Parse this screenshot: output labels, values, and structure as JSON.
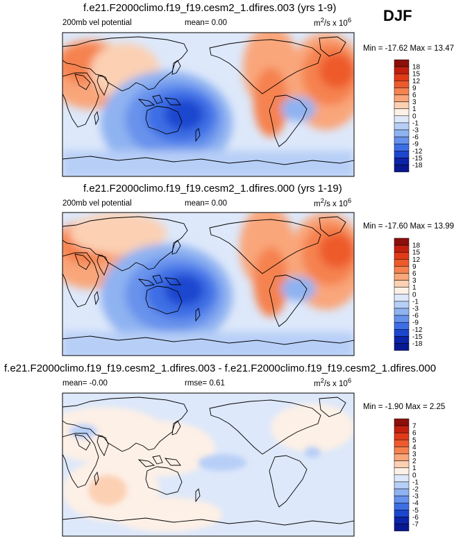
{
  "season": "DJF",
  "panels": [
    {
      "id": "top",
      "title": "f.e21.F2000climo.f19_f19.cesm2_1.dfires.003 (yrs 1-9)",
      "left_label": "200mb vel potential",
      "center_label": "mean=  0.00",
      "units_html": "m<sup>2</sup>/s x 10<sup>6</sup>",
      "minmax": "Min = -17.62 Max = 13.47",
      "levels": [
        "18",
        "15",
        "12",
        "9",
        "6",
        "3",
        "1",
        "0",
        "-1",
        "-3",
        "-6",
        "-9",
        "-12",
        "-15",
        "-18"
      ],
      "colors": [
        "#8b0f0a",
        "#c2200f",
        "#e03a18",
        "#ee5a2c",
        "#f5824f",
        "#f9a67a",
        "#fcd0b3",
        "#fdf0e6",
        "#dde8fa",
        "#b7cff7",
        "#8fb2f1",
        "#6792ec",
        "#3d6ee5",
        "#1d46cf",
        "#0c24a8",
        "#081890"
      ]
    },
    {
      "id": "middle",
      "title": "f.e21.F2000climo.f19_f19.cesm2_1.dfires.000 (yrs 1-19)",
      "left_label": "200mb vel potential",
      "center_label": "mean=  0.00",
      "units_html": "m<sup>2</sup>/s x 10<sup>6</sup>",
      "minmax": "Min = -17.60 Max = 13.99",
      "levels": [
        "18",
        "15",
        "12",
        "9",
        "6",
        "3",
        "1",
        "0",
        "-1",
        "-3",
        "-6",
        "-9",
        "-12",
        "-15",
        "-18"
      ],
      "colors": [
        "#8b0f0a",
        "#c2200f",
        "#e03a18",
        "#ee5a2c",
        "#f5824f",
        "#f9a67a",
        "#fcd0b3",
        "#fdf0e6",
        "#dde8fa",
        "#b7cff7",
        "#8fb2f1",
        "#6792ec",
        "#3d6ee5",
        "#1d46cf",
        "#0c24a8",
        "#081890"
      ]
    },
    {
      "id": "bottom",
      "title": "f.e21.F2000climo.f19_f19.cesm2_1.dfires.003 - f.e21.F2000climo.f19_f19.cesm2_1.dfires.000",
      "left_label": "mean= -0.00",
      "center_label": "rmse=  0.61",
      "units_html": "m<sup>2</sup>/s x 10<sup>6</sup>",
      "minmax": "Min = -1.90 Max =  2.25",
      "levels": [
        "7",
        "6",
        "5",
        "4",
        "3",
        "2",
        "1",
        "0",
        "-1",
        "-2",
        "-3",
        "-4",
        "-5",
        "-6",
        "-7"
      ],
      "colors": [
        "#8b0f0a",
        "#c2200f",
        "#e03a18",
        "#ee5a2c",
        "#f5824f",
        "#f9a67a",
        "#fcd0b3",
        "#fdf0e6",
        "#dde8fa",
        "#b7cff7",
        "#8fb2f1",
        "#6792ec",
        "#3d6ee5",
        "#1d46cf",
        "#0c24a8",
        "#081890"
      ]
    }
  ]
}
